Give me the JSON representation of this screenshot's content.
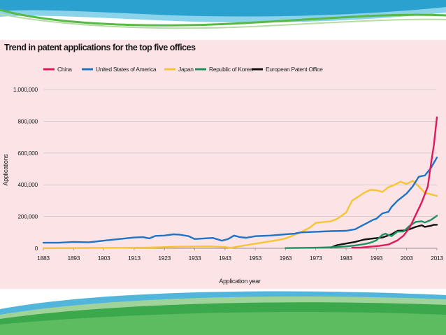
{
  "chart_data": {
    "type": "line",
    "title": "Trend in patent applications for the top five offices",
    "xlabel": "Application year",
    "ylabel": "Applications",
    "xlim": [
      1883,
      2013
    ],
    "ylim": [
      0,
      1000000
    ],
    "x_ticks": [
      "1883",
      "1893",
      "1903",
      "1913",
      "1923",
      "1933",
      "1943",
      "1953",
      "1963",
      "1973",
      "1983",
      "1993",
      "2003",
      "2013"
    ],
    "y_ticks": [
      "0",
      "200,000",
      "400,000",
      "600,000",
      "800,000",
      "1,000,000"
    ],
    "grid": true,
    "legend_position": "top",
    "series": [
      {
        "name": "China",
        "color": "#e0195c",
        "x": [
          1985,
          1988,
          1991,
          1994,
          1997,
          2000,
          2002,
          2004,
          2006,
          2008,
          2010,
          2011,
          2012,
          2013
        ],
        "y": [
          4000,
          5000,
          10000,
          15000,
          24000,
          50000,
          80000,
          130000,
          210000,
          290000,
          390000,
          526000,
          652000,
          825000
        ]
      },
      {
        "name": "United States of America",
        "color": "#1f74c8",
        "x": [
          1883,
          1888,
          1893,
          1898,
          1900,
          1903,
          1908,
          1913,
          1916,
          1918,
          1920,
          1923,
          1926,
          1928,
          1931,
          1933,
          1936,
          1939,
          1942,
          1944,
          1946,
          1948,
          1950,
          1953,
          1958,
          1963,
          1966,
          1968,
          1973,
          1978,
          1983,
          1986,
          1988,
          1990,
          1992,
          1993,
          1995,
          1997,
          1998,
          2000,
          2002,
          2003,
          2005,
          2007,
          2008,
          2009,
          2011,
          2013
        ],
        "y": [
          35000,
          35000,
          40000,
          38000,
          42000,
          48000,
          58000,
          68000,
          70000,
          62000,
          78000,
          80000,
          88000,
          86000,
          76000,
          58000,
          62000,
          65000,
          48000,
          58000,
          80000,
          70000,
          66000,
          76000,
          80000,
          88000,
          92000,
          100000,
          104000,
          108000,
          110000,
          120000,
          140000,
          160000,
          180000,
          186000,
          220000,
          230000,
          260000,
          300000,
          330000,
          345000,
          390000,
          450000,
          455000,
          458000,
          505000,
          572000
        ]
      },
      {
        "name": "Japan",
        "color": "#f5c533",
        "x": [
          1883,
          1898,
          1908,
          1918,
          1928,
          1938,
          1943,
          1945,
          1950,
          1955,
          1960,
          1963,
          1968,
          1971,
          1973,
          1978,
          1980,
          1983,
          1985,
          1987,
          1989,
          1991,
          1993,
          1995,
          1997,
          1999,
          2001,
          2003,
          2005,
          2007,
          2009,
          2011,
          2013
        ],
        "y": [
          1000,
          2000,
          3000,
          5000,
          10000,
          12000,
          8000,
          3000,
          20000,
          35000,
          50000,
          62000,
          100000,
          130000,
          160000,
          170000,
          185000,
          225000,
          300000,
          325000,
          350000,
          368000,
          365000,
          355000,
          385000,
          400000,
          420000,
          405000,
          425000,
          390000,
          350000,
          340000,
          330000
        ]
      },
      {
        "name": "Republic of Korea",
        "color": "#1e9160",
        "x": [
          1963,
          1970,
          1975,
          1980,
          1983,
          1986,
          1989,
          1991,
          1993,
          1995,
          1996,
          1998,
          2000,
          2002,
          2004,
          2006,
          2008,
          2009,
          2011,
          2013
        ],
        "y": [
          1500,
          3000,
          5000,
          8000,
          12000,
          18000,
          26000,
          35000,
          50000,
          85000,
          92000,
          76000,
          105000,
          106000,
          142000,
          166000,
          170000,
          162000,
          178000,
          205000
        ]
      },
      {
        "name": "European Patent Office",
        "color": "#111111",
        "x": [
          1978,
          1980,
          1983,
          1986,
          1989,
          1992,
          1995,
          1998,
          2000,
          2002,
          2004,
          2006,
          2008,
          2009,
          2011,
          2012,
          2013
        ],
        "y": [
          5000,
          20000,
          30000,
          40000,
          55000,
          62000,
          68000,
          88000,
          110000,
          112000,
          120000,
          135000,
          145000,
          135000,
          142000,
          148000,
          148000
        ]
      }
    ]
  }
}
